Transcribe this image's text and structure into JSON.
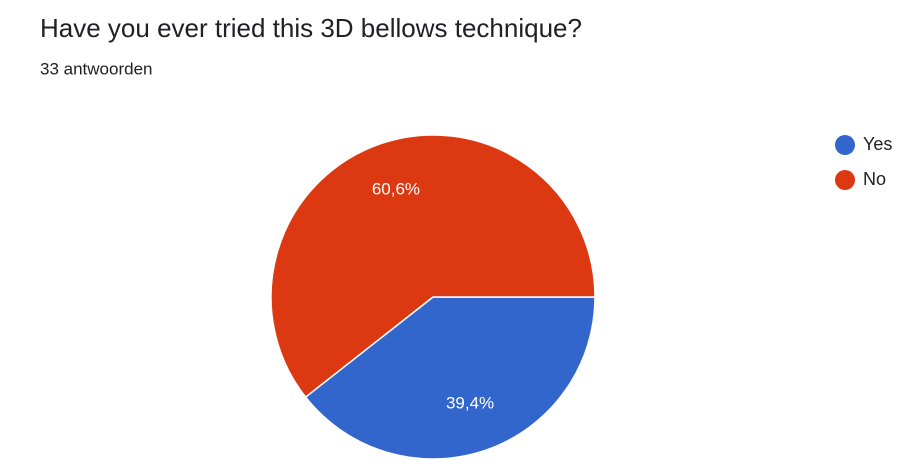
{
  "chart_data": {
    "type": "pie",
    "title": "Have you ever tried this 3D bellows technique?",
    "subtitle": "33 antwoorden",
    "categories": [
      "Yes",
      "No"
    ],
    "values": [
      39.4,
      60.6
    ],
    "value_labels": [
      "39,4%",
      "60,6%"
    ],
    "colors": [
      "#3366cc",
      "#dc3912"
    ],
    "legend": "right"
  }
}
